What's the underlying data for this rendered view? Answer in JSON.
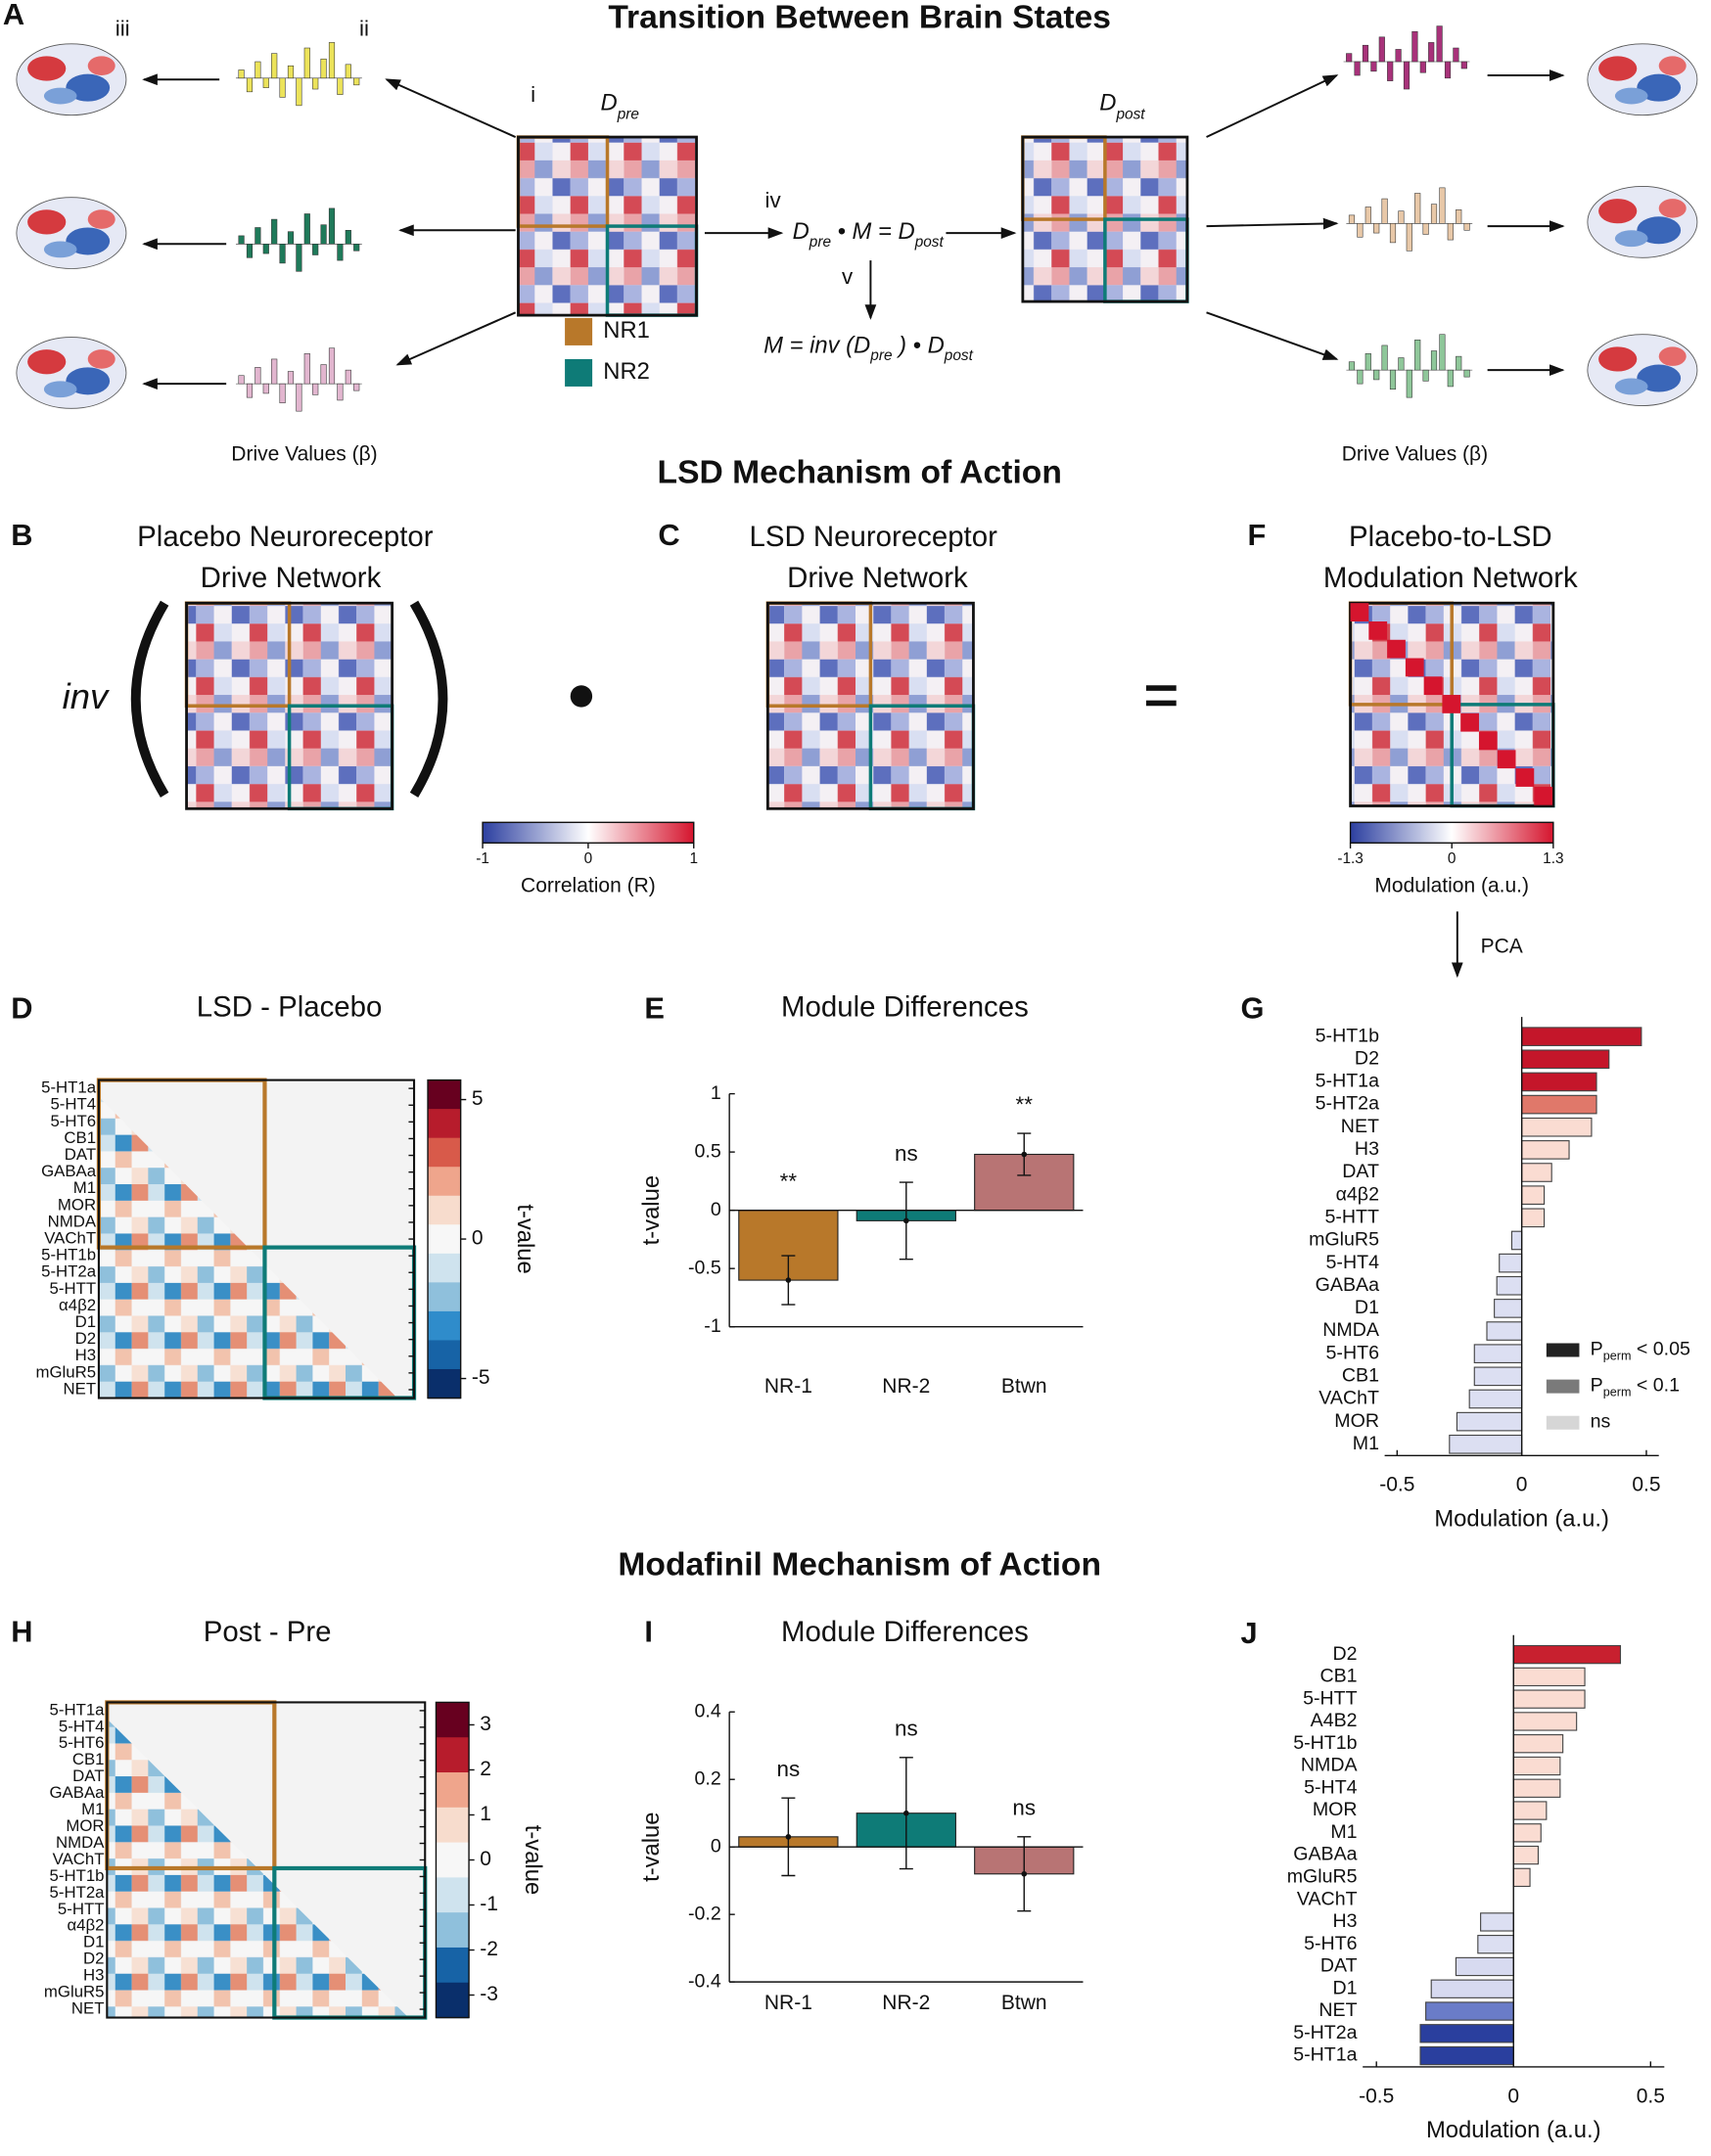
{
  "panel_labels": [
    "A",
    "B",
    "C",
    "D",
    "E",
    "F",
    "G",
    "H",
    "I",
    "J"
  ],
  "transition": {
    "title": "Transition Between Brain States",
    "steps": [
      "i",
      "ii",
      "iii",
      "iv",
      "v"
    ],
    "d_pre": {
      "symbol": "D",
      "sub": "pre"
    },
    "d_post": {
      "symbol": "D",
      "sub": "post"
    },
    "modules": [
      "NR1",
      "NR2"
    ],
    "drive_label": "Drive Values (β)",
    "equation_iv": [
      "D",
      "pre",
      " • M = D",
      "post"
    ],
    "equation_v": [
      "M = inv (D",
      "pre",
      " ) • D",
      "post"
    ]
  },
  "lsd": {
    "title": "LSD Mechanism of Action",
    "placebo_network": [
      "Placebo Neuroreceptor",
      "Drive Network"
    ],
    "inv": "inv",
    "lsd_network": [
      "LSD Neuroreceptor",
      "Drive Network"
    ],
    "modulation_network": [
      "Placebo-to-LSD",
      "Modulation Network"
    ],
    "pca": "PCA"
  },
  "colorbars": [
    {
      "label": "Correlation (R)",
      "lim": [
        -1,
        1
      ],
      "ticks": [
        -1,
        0,
        1
      ]
    },
    {
      "label": "Modulation (a.u.)",
      "lim": [
        -1.3,
        1.3
      ],
      "ticks": [
        -1.3,
        0,
        1.3
      ]
    }
  ],
  "modafinil_title": "Modafinil Mechanism of Action",
  "heatmaps": [
    {
      "title": "LSD - Placebo",
      "labels": [
        "5-HT1a",
        "5-HT4",
        "5-HT6",
        "CB1",
        "DAT",
        "GABAa",
        "M1",
        "MOR",
        "NMDA",
        "VAChT",
        "5-HT1b",
        "5-HT2a",
        "5-HTT",
        "α4β2",
        "D1",
        "D2",
        "H3",
        "mGluR5",
        "NET"
      ],
      "colorbar": {
        "label": "t-value",
        "lim": [
          -5.7,
          5.7
        ],
        "ticks": [
          5,
          0,
          -5
        ]
      }
    },
    {
      "title": "Post - Pre",
      "labels": [
        "5-HT1a",
        "5-HT4",
        "5-HT6",
        "CB1",
        "DAT",
        "GABAa",
        "M1",
        "MOR",
        "NMDA",
        "VAChT",
        "5-HT1b",
        "5-HT2a",
        "5-HTT",
        "α4β2",
        "D1",
        "D2",
        "H3",
        "mGluR5",
        "NET"
      ],
      "colorbar": {
        "label": "t-value",
        "lim": [
          -3.5,
          3.5
        ],
        "ticks": [
          3,
          2,
          1,
          0,
          -1,
          -2,
          -3
        ]
      }
    }
  ],
  "chart_data": [
    {
      "type": "bar",
      "title": "Module Differences",
      "categories": [
        "NR-1",
        "NR-2",
        "Btwn"
      ],
      "values": [
        -0.6,
        -0.09,
        0.48
      ],
      "errors": [
        0.21,
        0.33,
        0.18
      ],
      "colors": [
        "#b8782a",
        "#0e7b77",
        "#b87474"
      ],
      "annotations": [
        "**",
        "ns",
        "**"
      ],
      "ylabel": "t-value",
      "ylim": [
        -1,
        1
      ],
      "yticks": [
        -1,
        -0.5,
        0,
        0.5,
        1
      ]
    },
    {
      "type": "hbar",
      "categories": [
        "5-HT1b",
        "D2",
        "5-HT1a",
        "5-HT2a",
        "NET",
        "H3",
        "DAT",
        "α4β2",
        "5-HTT",
        "mGluR5",
        "5-HT4",
        "GABAa",
        "D1",
        "NMDA",
        "5-HT6",
        "CB1",
        "VAChT",
        "MOR",
        "M1"
      ],
      "values": [
        0.48,
        0.35,
        0.3,
        0.3,
        0.28,
        0.19,
        0.12,
        0.09,
        0.09,
        -0.04,
        -0.09,
        -0.1,
        -0.11,
        -0.14,
        -0.19,
        -0.19,
        -0.21,
        -0.26,
        -0.29
      ],
      "colors": [
        "#c4162a",
        "#c4162a",
        "#c4162a",
        "#e0786a",
        "#fadcd2",
        "#fadcd2",
        "#fadcd2",
        "#fadcd2",
        "#fadcd2",
        "#dcdff2",
        "#dcdff2",
        "#dcdff2",
        "#dcdff2",
        "#dcdff2",
        "#dcdff2",
        "#dcdff2",
        "#dcdff2",
        "#dcdff2",
        "#dcdff2"
      ],
      "xlabel": "Modulation (a.u.)",
      "xlim": [
        -0.55,
        0.55
      ],
      "xticks": [
        -0.5,
        0,
        0.5
      ],
      "legend": [
        {
          "label": "P",
          "sub": "perm",
          "suffix": " < 0.05",
          "color": "#222222"
        },
        {
          "label": "P",
          "sub": "perm",
          "suffix": " < 0.1",
          "color": "#7a7a7a"
        },
        {
          "label": "ns",
          "color": "#d6d6d6"
        }
      ]
    },
    {
      "type": "bar",
      "title": "Module Differences",
      "categories": [
        "NR-1",
        "NR-2",
        "Btwn"
      ],
      "values": [
        0.03,
        0.1,
        -0.08
      ],
      "errors": [
        0.115,
        0.165,
        0.11
      ],
      "colors": [
        "#b8782a",
        "#0e7b77",
        "#b87474"
      ],
      "annotations": [
        "ns",
        "ns",
        "ns"
      ],
      "ylabel": "t-value",
      "ylim": [
        -0.4,
        0.4
      ],
      "yticks": [
        -0.4,
        -0.2,
        0,
        0.2,
        0.4
      ]
    },
    {
      "type": "hbar",
      "categories": [
        "D2",
        "CB1",
        "5-HTT",
        "A4B2",
        "5-HT1b",
        "NMDA",
        "5-HT4",
        "MOR",
        "M1",
        "GABAa",
        "mGluR5",
        "VAChT",
        "H3",
        "5-HT6",
        "DAT",
        "D1",
        "NET",
        "5-HT2a",
        "5-HT1a"
      ],
      "values": [
        0.39,
        0.26,
        0.26,
        0.23,
        0.18,
        0.17,
        0.17,
        0.12,
        0.1,
        0.09,
        0.06,
        0,
        -0.12,
        -0.13,
        -0.21,
        -0.3,
        -0.32,
        -0.34,
        -0.34
      ],
      "colors": [
        "#c8202f",
        "#fadcd2",
        "#fadcd2",
        "#fadcd2",
        "#fadcd2",
        "#fadcd2",
        "#fadcd2",
        "#fadcd2",
        "#fadcd2",
        "#fadcd2",
        "#fadcd2",
        "#fadcd2",
        "#dcdff2",
        "#dcdff2",
        "#d7daf0",
        "#d7daf0",
        "#6a7cc8",
        "#2a3f9e",
        "#2a3f9e"
      ],
      "xlabel": "Modulation (a.u.)",
      "xlim": [
        -0.55,
        0.55
      ],
      "xticks": [
        -0.5,
        0,
        0.5
      ]
    }
  ]
}
